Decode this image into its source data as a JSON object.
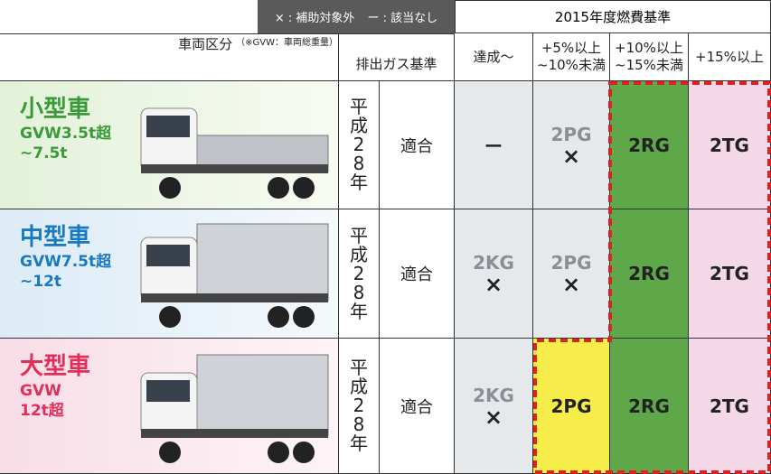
{
  "legend": [
    "× : 補助対象外",
    "ー : 該当なし"
  ],
  "header": {
    "standard_group": "2015年度燃費基準",
    "vehicle_class": "車両区分",
    "vehicle_class_note": "（※GVW：車両総重量）",
    "emission": "排出ガス基準",
    "levels": [
      [
        "達成～"
      ],
      [
        "+5%以上",
        "~10%未満"
      ],
      [
        "+10%以上",
        "~15%未満"
      ],
      [
        "+15%以上"
      ]
    ]
  },
  "rows": [
    {
      "name": "小型車",
      "gvw": [
        "GVW3.5t超",
        "~7.5t"
      ],
      "emission_year": "平成28年",
      "emission_status": "適合",
      "cells": [
        {
          "code": "ー"
        },
        {
          "code": "2PG",
          "mark": "×"
        },
        {
          "code": "2RG"
        },
        {
          "code": "2TG"
        }
      ]
    },
    {
      "name": "中型車",
      "gvw": [
        "GVW7.5t超",
        "~12t"
      ],
      "emission_year": "平成28年",
      "emission_status": "適合",
      "cells": [
        {
          "code": "2KG",
          "mark": "×"
        },
        {
          "code": "2PG",
          "mark": "×"
        },
        {
          "code": "2RG"
        },
        {
          "code": "2TG"
        }
      ]
    },
    {
      "name": "大型車",
      "gvw": [
        "GVW",
        "12t超"
      ],
      "emission_year": "平成28年",
      "emission_status": "適合",
      "cells": [
        {
          "code": "2KG",
          "mark": "×"
        },
        {
          "code": "2PG"
        },
        {
          "code": "2RG"
        },
        {
          "code": "2TG"
        }
      ]
    }
  ]
}
